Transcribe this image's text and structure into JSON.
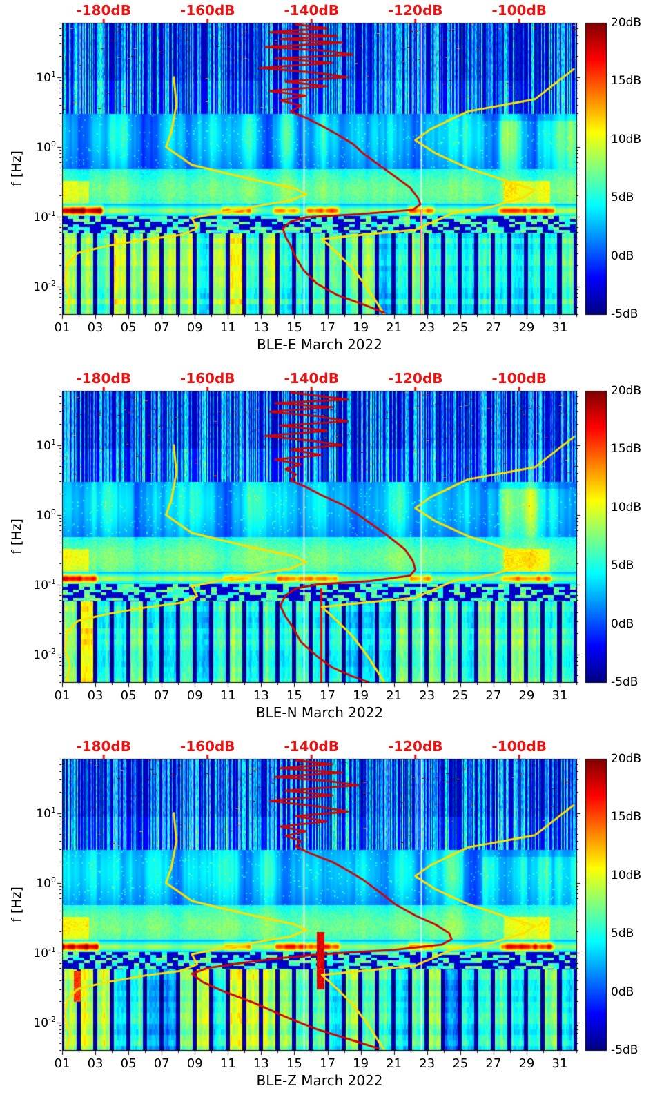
{
  "figure": {
    "background": "#ffffff"
  },
  "colors": {
    "overlay_red": "#d40000",
    "overlay_yellow": "#ffe000",
    "top_axis_red": "#e81414",
    "axis_black": "#000000"
  },
  "noise_models": {
    "nlnm_db_hz": [
      [
        -166.5,
        10
      ],
      [
        -166,
        4
      ],
      [
        -167,
        1.6
      ],
      [
        -168,
        1.0
      ],
      [
        -163,
        0.55
      ],
      [
        -152,
        0.35
      ],
      [
        -143,
        0.25
      ],
      [
        -141,
        0.21
      ],
      [
        -144,
        0.17
      ],
      [
        -149,
        0.148
      ],
      [
        -158,
        0.112
      ],
      [
        -163,
        0.095
      ],
      [
        -162,
        0.068
      ],
      [
        -165,
        0.055
      ],
      [
        -172,
        0.047
      ],
      [
        -180,
        0.037
      ],
      [
        -185,
        0.03
      ],
      [
        -187,
        0.021
      ],
      [
        -187.5,
        0.012
      ],
      [
        -186.5,
        0.007
      ],
      [
        -187,
        0.004
      ]
    ],
    "nhnm_db_hz": [
      [
        -89.5,
        13
      ],
      [
        -91.5,
        10
      ],
      [
        -97,
        4.8
      ],
      [
        -110,
        3.2
      ],
      [
        -117,
        1.8
      ],
      [
        -120,
        1.25
      ],
      [
        -116,
        0.8
      ],
      [
        -110,
        0.5
      ],
      [
        -101,
        0.3
      ],
      [
        -97,
        0.24
      ],
      [
        -99,
        0.19
      ],
      [
        -105,
        0.14
      ],
      [
        -113,
        0.11
      ],
      [
        -120,
        0.065
      ],
      [
        -130,
        0.055
      ],
      [
        -138,
        0.048
      ],
      [
        -135,
        0.03
      ],
      [
        -132,
        0.018
      ],
      [
        -129,
        0.009
      ],
      [
        -126,
        0.004
      ]
    ]
  },
  "chart_data": [
    {
      "type": "heatmap",
      "panel_id": "BLE-E",
      "xlabel": "BLE-E March 2022",
      "ylabel": "f [Hz]",
      "x_tick_labels": [
        "01",
        "03",
        "05",
        "07",
        "09",
        "11",
        "13",
        "15",
        "17",
        "19",
        "21",
        "23",
        "25",
        "27",
        "29",
        "31"
      ],
      "x_tick_days": [
        1,
        3,
        5,
        7,
        9,
        11,
        13,
        15,
        17,
        19,
        21,
        23,
        25,
        27,
        29,
        31
      ],
      "xlim_days": [
        1,
        32
      ],
      "y_tick_exponents": [
        1,
        0,
        -1,
        -2
      ],
      "ylim_hz": [
        0.004,
        60
      ],
      "top_axis": {
        "labels": [
          "-180dB",
          "-160dB",
          "-140dB",
          "-120dB",
          "-100dB"
        ],
        "values": [
          -180,
          -160,
          -140,
          -120,
          -100
        ],
        "range_db": [
          -188,
          -89
        ]
      },
      "colorbar": {
        "labels": [
          "20dB",
          "15dB",
          "10dB",
          "5dB",
          "0dB",
          "-5dB"
        ],
        "values": [
          20,
          15,
          10,
          5,
          0,
          -5
        ],
        "range_db": [
          -5,
          20
        ]
      },
      "median_psd_db_hz": [
        [
          -143,
          57
        ],
        [
          -137,
          50
        ],
        [
          -148,
          44
        ],
        [
          -135,
          39
        ],
        [
          -146,
          35
        ],
        [
          -134,
          31
        ],
        [
          -149,
          27
        ],
        [
          -138,
          24
        ],
        [
          -132,
          21
        ],
        [
          -147,
          18.5
        ],
        [
          -136,
          16
        ],
        [
          -150,
          13.5
        ],
        [
          -139,
          11.5
        ],
        [
          -133,
          10
        ],
        [
          -145,
          8.6
        ],
        [
          -137,
          7.4
        ],
        [
          -148,
          6.3
        ],
        [
          -141,
          5.4
        ],
        [
          -146,
          4.6
        ],
        [
          -142,
          3.9
        ],
        [
          -144,
          3.2
        ],
        [
          -141,
          2.6
        ],
        [
          -138,
          2.0
        ],
        [
          -135,
          1.5
        ],
        [
          -132,
          1.1
        ],
        [
          -130,
          0.8
        ],
        [
          -127,
          0.55
        ],
        [
          -124,
          0.38
        ],
        [
          -121,
          0.26
        ],
        [
          -119.5,
          0.185
        ],
        [
          -119,
          0.15
        ],
        [
          -120.5,
          0.125
        ],
        [
          -131,
          0.108
        ],
        [
          -141,
          0.098
        ],
        [
          -144,
          0.085
        ],
        [
          -145.5,
          0.068
        ],
        [
          -145,
          0.052
        ],
        [
          -144,
          0.038
        ],
        [
          -143,
          0.026
        ],
        [
          -141.5,
          0.017
        ],
        [
          -139,
          0.011
        ],
        [
          -135,
          0.0075
        ],
        [
          -130,
          0.0055
        ],
        [
          -126,
          0.0042
        ]
      ],
      "texture": {
        "seed": 11,
        "microseism_hot_days": [
          [
            0.8,
            3.3,
            19
          ],
          [
            10.7,
            12.3,
            13
          ],
          [
            13.8,
            15.2,
            12
          ],
          [
            15.8,
            17.6,
            14
          ],
          [
            21.9,
            23.3,
            13
          ],
          [
            27.4,
            30.6,
            15
          ]
        ],
        "low_band_bright_days": [
          [
            1,
            13.5,
            3.5
          ]
        ],
        "missing_data_days": [
          15.55,
          22.62
        ],
        "red_spike_days": [
          [
            22.62,
            0.13
          ]
        ],
        "hot_spots": []
      }
    },
    {
      "type": "heatmap",
      "panel_id": "BLE-N",
      "xlabel": "BLE-N March 2022",
      "ylabel": "f [Hz]",
      "x_tick_labels": [
        "01",
        "03",
        "05",
        "07",
        "09",
        "11",
        "13",
        "15",
        "17",
        "19",
        "21",
        "23",
        "25",
        "27",
        "29",
        "31"
      ],
      "x_tick_days": [
        1,
        3,
        5,
        7,
        9,
        11,
        13,
        15,
        17,
        19,
        21,
        23,
        25,
        27,
        29,
        31
      ],
      "xlim_days": [
        1,
        32
      ],
      "y_tick_exponents": [
        1,
        0,
        -1,
        -2
      ],
      "ylim_hz": [
        0.004,
        60
      ],
      "top_axis": {
        "labels": [
          "-180dB",
          "-160dB",
          "-140dB",
          "-120dB",
          "-100dB"
        ],
        "values": [
          -180,
          -160,
          -140,
          -120,
          -100
        ],
        "range_db": [
          -188,
          -89
        ]
      },
      "colorbar": {
        "labels": [
          "20dB",
          "15dB",
          "10dB",
          "5dB",
          "0dB",
          "-5dB"
        ],
        "values": [
          20,
          15,
          10,
          5,
          0,
          -5
        ],
        "range_db": [
          -5,
          20
        ]
      },
      "median_psd_db_hz": [
        [
          -144,
          57
        ],
        [
          -138,
          50
        ],
        [
          -133,
          45
        ],
        [
          -147,
          40
        ],
        [
          -136,
          35
        ],
        [
          -148,
          30
        ],
        [
          -139,
          26
        ],
        [
          -133,
          22
        ],
        [
          -146,
          19
        ],
        [
          -137,
          16
        ],
        [
          -149,
          13.5
        ],
        [
          -140,
          11.5
        ],
        [
          -134,
          10
        ],
        [
          -144,
          8.6
        ],
        [
          -138,
          7.2
        ],
        [
          -147,
          6.2
        ],
        [
          -142,
          5.3
        ],
        [
          -145,
          4.5
        ],
        [
          -143,
          3.8
        ],
        [
          -144,
          3.1
        ],
        [
          -141,
          2.5
        ],
        [
          -138,
          1.9
        ],
        [
          -134,
          1.4
        ],
        [
          -131,
          1.0
        ],
        [
          -128,
          0.7
        ],
        [
          -125,
          0.48
        ],
        [
          -122,
          0.32
        ],
        [
          -120.5,
          0.22
        ],
        [
          -120,
          0.165
        ],
        [
          -121,
          0.135
        ],
        [
          -129,
          0.112
        ],
        [
          -139,
          0.1
        ],
        [
          -143,
          0.088
        ],
        [
          -145,
          0.07
        ],
        [
          -146,
          0.05
        ],
        [
          -145,
          0.035
        ],
        [
          -143.5,
          0.024
        ],
        [
          -142,
          0.015
        ],
        [
          -139,
          0.0095
        ],
        [
          -136,
          0.0065
        ],
        [
          -132,
          0.0048
        ],
        [
          -129,
          0.004
        ]
      ],
      "texture": {
        "seed": 22,
        "microseism_hot_days": [
          [
            0.8,
            3.0,
            17
          ],
          [
            10.8,
            12.2,
            12
          ],
          [
            14.0,
            17.5,
            13
          ],
          [
            22.0,
            23.2,
            12
          ],
          [
            27.6,
            30.4,
            13
          ]
        ],
        "low_band_bright_days": [
          [
            1,
            2.5,
            2.0
          ]
        ],
        "missing_data_days": [
          15.55,
          22.62
        ],
        "red_spike_days": [
          [
            16.6,
            0.09
          ]
        ],
        "hot_spots": []
      }
    },
    {
      "type": "heatmap",
      "panel_id": "BLE-Z",
      "xlabel": "BLE-Z March 2022",
      "ylabel": "f [Hz]",
      "x_tick_labels": [
        "01",
        "03",
        "05",
        "07",
        "09",
        "11",
        "13",
        "15",
        "17",
        "19",
        "21",
        "23",
        "25",
        "27",
        "29",
        "31"
      ],
      "x_tick_days": [
        1,
        3,
        5,
        7,
        9,
        11,
        13,
        15,
        17,
        19,
        21,
        23,
        25,
        27,
        29,
        31
      ],
      "xlim_days": [
        1,
        32
      ],
      "y_tick_exponents": [
        1,
        0,
        -1,
        -2
      ],
      "ylim_hz": [
        0.004,
        60
      ],
      "top_axis": {
        "labels": [
          "-180dB",
          "-160dB",
          "-140dB",
          "-120dB",
          "-100dB"
        ],
        "values": [
          -180,
          -160,
          -140,
          -120,
          -100
        ],
        "range_db": [
          -188,
          -89
        ]
      },
      "colorbar": {
        "labels": [
          "20dB",
          "15dB",
          "10dB",
          "5dB",
          "0dB",
          "-5dB"
        ],
        "values": [
          20,
          15,
          10,
          5,
          0,
          -5
        ],
        "range_db": [
          -5,
          20
        ]
      },
      "median_psd_db_hz": [
        [
          -143,
          57
        ],
        [
          -136,
          50
        ],
        [
          -146,
          44
        ],
        [
          -134,
          38
        ],
        [
          -147,
          33
        ],
        [
          -137,
          29
        ],
        [
          -131,
          25
        ],
        [
          -145,
          21
        ],
        [
          -136,
          18
        ],
        [
          -148,
          15
        ],
        [
          -139,
          12.5
        ],
        [
          -133,
          10.5
        ],
        [
          -143,
          9
        ],
        [
          -137,
          7.6
        ],
        [
          -146,
          6.4
        ],
        [
          -141,
          5.5
        ],
        [
          -145,
          4.7
        ],
        [
          -142,
          4.0
        ],
        [
          -143,
          3.3
        ],
        [
          -140,
          2.6
        ],
        [
          -136,
          2.0
        ],
        [
          -133,
          1.5
        ],
        [
          -130,
          1.1
        ],
        [
          -127,
          0.75
        ],
        [
          -124,
          0.5
        ],
        [
          -120,
          0.34
        ],
        [
          -116,
          0.25
        ],
        [
          -113.5,
          0.19
        ],
        [
          -113,
          0.155
        ],
        [
          -115,
          0.13
        ],
        [
          -124,
          0.11
        ],
        [
          -138,
          0.095
        ],
        [
          -147,
          0.082
        ],
        [
          -154,
          0.07
        ],
        [
          -160,
          0.06
        ],
        [
          -163,
          0.05
        ],
        [
          -161,
          0.038
        ],
        [
          -157,
          0.028
        ],
        [
          -151,
          0.019
        ],
        [
          -145,
          0.012
        ],
        [
          -139,
          0.008
        ],
        [
          -133,
          0.0058
        ],
        [
          -127,
          0.0042
        ]
      ],
      "texture": {
        "seed": 33,
        "microseism_hot_days": [
          [
            0.8,
            3.1,
            18
          ],
          [
            10.8,
            12.3,
            13
          ],
          [
            13.9,
            17.6,
            15
          ],
          [
            21.9,
            23.3,
            13
          ],
          [
            27.5,
            30.5,
            16
          ]
        ],
        "low_band_bright_days": [
          [
            1,
            3,
            2.0
          ],
          [
            8,
            13,
            1.5
          ]
        ],
        "missing_data_days": [
          15.55,
          22.62
        ],
        "red_spike_days": [],
        "hot_spots": [
          [
            16.35,
            16.8,
            0.03,
            0.2,
            19
          ],
          [
            1.7,
            2.1,
            0.02,
            0.055,
            17
          ]
        ]
      }
    }
  ]
}
